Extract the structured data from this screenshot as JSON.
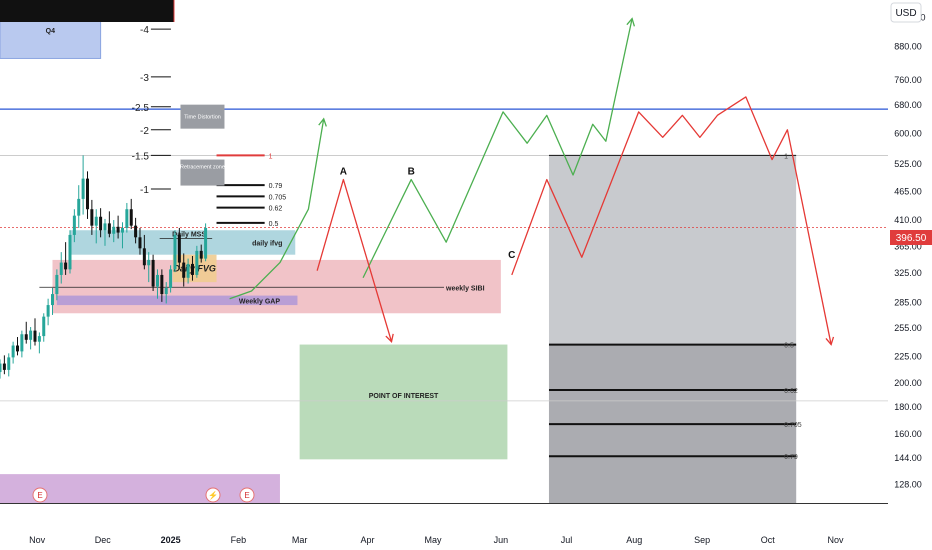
{
  "currency_button": "USD",
  "price_badge": "396.50",
  "chart_data": {
    "type": "candlestick",
    "scale": "log",
    "price_axis": {
      "ticks": [
        "1,000.00",
        "880.00",
        "760.00",
        "680.00",
        "600.00",
        "525.00",
        "465.00",
        "410.00",
        "365.00",
        "325.00",
        "285.00",
        "255.00",
        "225.00",
        "200.00",
        "180.00",
        "160.00",
        "144.00",
        "128.00"
      ],
      "ylim": [
        118,
        1080
      ]
    },
    "time_axis": {
      "ticks": [
        "Nov",
        "Dec",
        "2025",
        "Feb",
        "Mar",
        "Apr",
        "May",
        "Jun",
        "Jul",
        "Aug",
        "Sep",
        "Oct",
        "Nov"
      ],
      "range": [
        "2024-10-15",
        "2025-11-25"
      ]
    },
    "last_price": 396.5,
    "candles": [
      {
        "d": "2024-10-13",
        "o": 205,
        "h": 215,
        "l": 196,
        "c": 210
      },
      {
        "d": "2024-10-15",
        "o": 210,
        "h": 222,
        "l": 204,
        "c": 218
      },
      {
        "d": "2024-10-17",
        "o": 218,
        "h": 226,
        "l": 208,
        "c": 212
      },
      {
        "d": "2024-10-19",
        "o": 212,
        "h": 228,
        "l": 206,
        "c": 224
      },
      {
        "d": "2024-10-21",
        "o": 224,
        "h": 240,
        "l": 218,
        "c": 236
      },
      {
        "d": "2024-10-23",
        "o": 236,
        "h": 245,
        "l": 226,
        "c": 230
      },
      {
        "d": "2024-10-25",
        "o": 230,
        "h": 252,
        "l": 224,
        "c": 248
      },
      {
        "d": "2024-10-27",
        "o": 248,
        "h": 262,
        "l": 238,
        "c": 242
      },
      {
        "d": "2024-10-29",
        "o": 242,
        "h": 256,
        "l": 232,
        "c": 252
      },
      {
        "d": "2024-10-31",
        "o": 252,
        "h": 266,
        "l": 236,
        "c": 240
      },
      {
        "d": "2024-11-02",
        "o": 240,
        "h": 250,
        "l": 228,
        "c": 246
      },
      {
        "d": "2024-11-04",
        "o": 246,
        "h": 272,
        "l": 240,
        "c": 268
      },
      {
        "d": "2024-11-06",
        "o": 268,
        "h": 290,
        "l": 258,
        "c": 282
      },
      {
        "d": "2024-11-08",
        "o": 282,
        "h": 304,
        "l": 270,
        "c": 296
      },
      {
        "d": "2024-11-10",
        "o": 296,
        "h": 330,
        "l": 288,
        "c": 322
      },
      {
        "d": "2024-11-12",
        "o": 322,
        "h": 356,
        "l": 310,
        "c": 340
      },
      {
        "d": "2024-11-14",
        "o": 340,
        "h": 372,
        "l": 322,
        "c": 330
      },
      {
        "d": "2024-11-16",
        "o": 330,
        "h": 392,
        "l": 324,
        "c": 384
      },
      {
        "d": "2024-11-18",
        "o": 384,
        "h": 430,
        "l": 372,
        "c": 418
      },
      {
        "d": "2024-11-20",
        "o": 418,
        "h": 478,
        "l": 396,
        "c": 450
      },
      {
        "d": "2024-11-22",
        "o": 450,
        "h": 545,
        "l": 420,
        "c": 492
      },
      {
        "d": "2024-11-24",
        "o": 492,
        "h": 508,
        "l": 412,
        "c": 430
      },
      {
        "d": "2024-11-26",
        "o": 430,
        "h": 448,
        "l": 384,
        "c": 400
      },
      {
        "d": "2024-11-28",
        "o": 400,
        "h": 430,
        "l": 370,
        "c": 416
      },
      {
        "d": "2024-11-30",
        "o": 416,
        "h": 432,
        "l": 380,
        "c": 392
      },
      {
        "d": "2024-12-02",
        "o": 392,
        "h": 412,
        "l": 366,
        "c": 404
      },
      {
        "d": "2024-12-04",
        "o": 404,
        "h": 426,
        "l": 380,
        "c": 386
      },
      {
        "d": "2024-12-06",
        "o": 386,
        "h": 410,
        "l": 372,
        "c": 398
      },
      {
        "d": "2024-12-08",
        "o": 398,
        "h": 418,
        "l": 378,
        "c": 388
      },
      {
        "d": "2024-12-10",
        "o": 388,
        "h": 406,
        "l": 362,
        "c": 396
      },
      {
        "d": "2024-12-12",
        "o": 396,
        "h": 442,
        "l": 388,
        "c": 430
      },
      {
        "d": "2024-12-14",
        "o": 430,
        "h": 450,
        "l": 394,
        "c": 400
      },
      {
        "d": "2024-12-16",
        "o": 400,
        "h": 414,
        "l": 370,
        "c": 380
      },
      {
        "d": "2024-12-18",
        "o": 380,
        "h": 396,
        "l": 352,
        "c": 362
      },
      {
        "d": "2024-12-20",
        "o": 362,
        "h": 384,
        "l": 330,
        "c": 336
      },
      {
        "d": "2024-12-22",
        "o": 336,
        "h": 356,
        "l": 312,
        "c": 344
      },
      {
        "d": "2024-12-24",
        "o": 344,
        "h": 352,
        "l": 300,
        "c": 306
      },
      {
        "d": "2024-12-26",
        "o": 306,
        "h": 330,
        "l": 290,
        "c": 322
      },
      {
        "d": "2024-12-28",
        "o": 322,
        "h": 330,
        "l": 286,
        "c": 296
      },
      {
        "d": "2024-12-30",
        "o": 296,
        "h": 312,
        "l": 284,
        "c": 304
      },
      {
        "d": "2025-01-01",
        "o": 304,
        "h": 336,
        "l": 298,
        "c": 330
      },
      {
        "d": "2025-01-03",
        "o": 330,
        "h": 392,
        "l": 326,
        "c": 384
      },
      {
        "d": "2025-01-05",
        "o": 384,
        "h": 396,
        "l": 330,
        "c": 340
      },
      {
        "d": "2025-01-07",
        "o": 340,
        "h": 354,
        "l": 306,
        "c": 318
      },
      {
        "d": "2025-01-09",
        "o": 318,
        "h": 346,
        "l": 310,
        "c": 338
      },
      {
        "d": "2025-01-11",
        "o": 338,
        "h": 350,
        "l": 314,
        "c": 322
      },
      {
        "d": "2025-01-13",
        "o": 322,
        "h": 366,
        "l": 318,
        "c": 358
      },
      {
        "d": "2025-01-15",
        "o": 358,
        "h": 368,
        "l": 340,
        "c": 346
      },
      {
        "d": "2025-01-17",
        "o": 346,
        "h": 404,
        "l": 342,
        "c": 396
      }
    ],
    "ranges": [
      {
        "label": "Q4",
        "from": "2024-10-15",
        "to": "2024-11-30",
        "low": 835,
        "high": 1080,
        "fill": "#b1c3ed",
        "border": "#8aa4e1"
      },
      {
        "label": "daily ifvg",
        "from": "2024-11-16",
        "to": "2025-02-27",
        "low": 352,
        "high": 392,
        "fill": "#a6d2dc"
      },
      {
        "label": "",
        "from": "2024-11-08",
        "to": "2025-06-01",
        "low": 272,
        "high": 344,
        "fill": "#efbcc2"
      },
      {
        "label": "Weekly GAP",
        "from": "2024-11-10",
        "to": "2025-02-28",
        "low": 282,
        "high": 294,
        "fill": "#b39ad6"
      },
      {
        "label": "Daily FVG",
        "from": "2025-01-02",
        "to": "2025-01-22",
        "low": 312,
        "high": 352,
        "fill": "#f0cc90"
      },
      {
        "label": "POINT OF INTEREST",
        "from": "2025-03-01",
        "to": "2025-06-04",
        "low": 143,
        "high": 237,
        "fill": "#b2d7b2"
      },
      {
        "label": "",
        "from": "2025-06-23",
        "to": "2025-10-14",
        "low": 118,
        "high": 545,
        "fill": "#c2c4c9"
      },
      {
        "label": "",
        "from": "2025-06-23",
        "to": "2025-10-14",
        "low": 118,
        "high": 237,
        "fill": "#a7a9ae"
      },
      {
        "label": "",
        "from": "2024-10-15",
        "to": "2025-02-20",
        "low": 118,
        "high": 134,
        "fill": "#cfa8d9"
      }
    ],
    "levels": [
      {
        "label": "weekly SIBI",
        "price": 305,
        "from": "2024-11-02",
        "to": "2025-05-06",
        "color": "#222222"
      },
      {
        "label": "Daily MSS",
        "price": 378,
        "from": "2024-12-27",
        "to": "2025-01-20",
        "color": "#222222"
      },
      {
        "label": "",
        "price": 668,
        "from": "2024-10-15",
        "to": "2025-11-25",
        "color": "#2955d6"
      },
      {
        "label": "",
        "price": 396.5,
        "from": "2024-10-15",
        "to": "2025-11-25",
        "color": "#e03c3c",
        "dashed": true
      },
      {
        "label": "",
        "price": 545,
        "from": "2024-10-15",
        "to": "2025-11-25",
        "color": "#bbbbbb"
      },
      {
        "label": "",
        "price": 185,
        "from": "2024-10-15",
        "to": "2025-11-25",
        "color": "#cccccc"
      }
    ],
    "fib_right": [
      {
        "label": "1",
        "price": 545
      },
      {
        "label": "0.5",
        "price": 237
      },
      {
        "label": "0.62",
        "price": 194
      },
      {
        "label": "0.705",
        "price": 167
      },
      {
        "label": "0.79",
        "price": 145
      }
    ],
    "fib_left": [
      {
        "label": "1",
        "price": 545,
        "color": "#e03c3c"
      },
      {
        "label": "0.79",
        "price": 478
      },
      {
        "label": "0.705",
        "price": 455
      },
      {
        "label": "0.62",
        "price": 433
      },
      {
        "label": "0.5",
        "price": 405
      }
    ],
    "time_fib": [
      {
        "label": "-4",
        "price": 950
      },
      {
        "label": "-3",
        "price": 770
      },
      {
        "label": "-2.5",
        "price": 675
      },
      {
        "label": "-2",
        "price": 610
      },
      {
        "label": "-1.5",
        "price": 545
      },
      {
        "label": "-1",
        "price": 470
      }
    ],
    "tags": [
      {
        "label": "Time Distortion",
        "date": "2025-01-11",
        "price": 652
      },
      {
        "label": "Retracement zone",
        "date": "2025-01-11",
        "price": 512
      }
    ],
    "green_path": [
      {
        "d": "2025-01-28",
        "p": 290
      },
      {
        "d": "2025-02-07",
        "p": 300
      },
      {
        "d": "2025-02-20",
        "p": 340
      },
      {
        "d": "2025-03-05",
        "p": 430
      },
      {
        "d": "2025-03-12",
        "p": 640
      },
      {
        "d": "2025-03-29",
        "p": 318
      },
      {
        "d": "2025-05-02",
        "p": 490
      },
      {
        "d": "2025-05-02",
        "p": 490
      },
      {
        "d": "2025-04-30",
        "p": 480
      },
      {
        "d": "2025-05-02",
        "p": 490
      }
    ],
    "green_wave": [
      {
        "d": "2025-03-30",
        "p": 318
      },
      {
        "d": "2025-04-21",
        "p": 490
      },
      {
        "d": "2025-05-07",
        "p": 372
      },
      {
        "d": "2025-06-02",
        "p": 660
      },
      {
        "d": "2025-06-13",
        "p": 575
      },
      {
        "d": "2025-06-22",
        "p": 650
      },
      {
        "d": "2025-07-04",
        "p": 500
      },
      {
        "d": "2025-07-13",
        "p": 625
      },
      {
        "d": "2025-07-19",
        "p": 580
      },
      {
        "d": "2025-07-31",
        "p": 995
      }
    ],
    "red_wave": [
      {
        "d": "2025-03-09",
        "p": 328
      },
      {
        "d": "2025-03-21",
        "p": 490
      },
      {
        "d": "2025-04-12",
        "p": 240
      },
      {
        "d": "2025-06-06",
        "p": 322
      },
      {
        "d": "2025-06-22",
        "p": 490
      },
      {
        "d": "2025-07-08",
        "p": 348
      },
      {
        "d": "2025-08-03",
        "p": 660
      },
      {
        "d": "2025-08-14",
        "p": 590
      },
      {
        "d": "2025-08-23",
        "p": 650
      },
      {
        "d": "2025-08-31",
        "p": 590
      },
      {
        "d": "2025-09-08",
        "p": 650
      },
      {
        "d": "2025-09-21",
        "p": 705
      },
      {
        "d": "2025-10-03",
        "p": 535
      },
      {
        "d": "2025-10-10",
        "p": 610
      },
      {
        "d": "2025-10-30",
        "p": 237
      }
    ],
    "wave_labels": [
      {
        "label": "A",
        "date": "2025-03-21",
        "price": 505
      },
      {
        "label": "B",
        "date": "2025-04-21",
        "price": 505
      },
      {
        "label": "C",
        "date": "2025-06-06",
        "price": 350
      }
    ]
  }
}
